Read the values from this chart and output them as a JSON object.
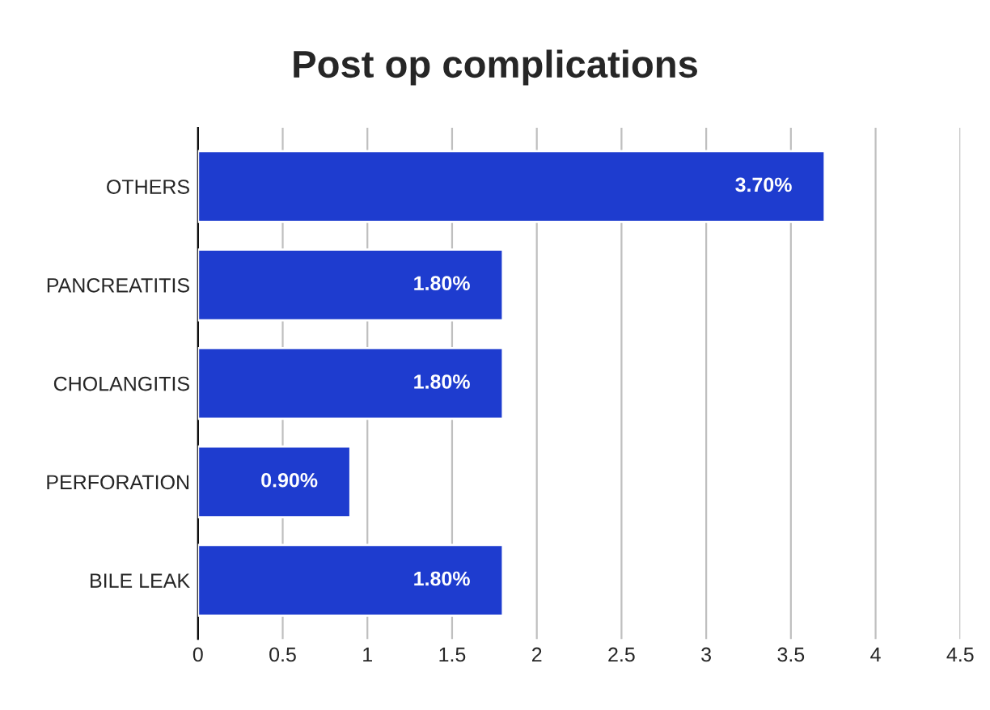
{
  "chart_data": {
    "type": "bar",
    "title": "Post op complications",
    "orientation": "horizontal",
    "categories": [
      "OTHERS",
      "PANCREATITIS",
      "CHOLANGITIS",
      "PERFORATION",
      "BILE LEAK"
    ],
    "values": [
      3.7,
      1.8,
      1.8,
      0.9,
      1.8
    ],
    "value_labels": [
      "3.70%",
      "1.80%",
      "1.80%",
      "0.90%",
      "1.80%"
    ],
    "color": "#1e3ccf",
    "xlim": [
      0,
      4.5
    ],
    "xticks": [
      0,
      0.5,
      1,
      1.5,
      2,
      2.5,
      3,
      3.5,
      4,
      4.5
    ],
    "grid": "x"
  }
}
